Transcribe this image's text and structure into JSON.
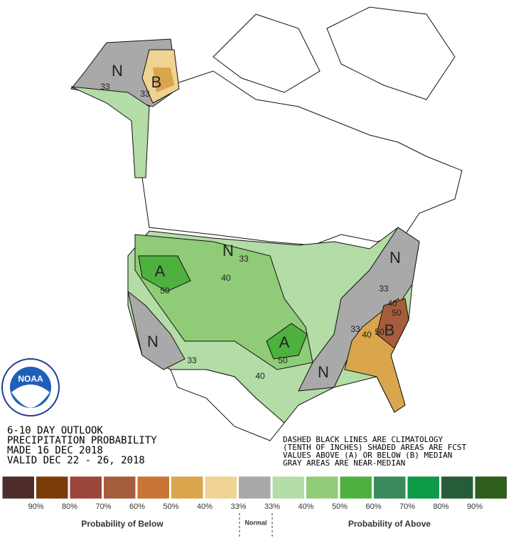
{
  "map_labels": [
    "N",
    "B",
    "33",
    "33",
    "A",
    "50",
    "N",
    "33",
    "40",
    "N",
    "33",
    "A",
    "50",
    "40",
    "N",
    "N",
    "33",
    "40",
    "50",
    "B",
    "50",
    "40",
    "33"
  ],
  "logo": "NOAA",
  "title_block": [
    "6-10 DAY OUTLOOK",
    "PRECIPITATION PROBABILITY",
    "MADE  16 DEC 2018",
    "VALID  DEC 22 - 26, 2018"
  ],
  "notes": [
    "DASHED BLACK LINES ARE CLIMATOLOGY",
    "(TENTH OF INCHES) SHADED AREAS ARE FCST",
    "VALUES ABOVE (A) OR BELOW (B) MEDIAN",
    "GRAY AREAS ARE NEAR-MEDIAN"
  ],
  "legend": {
    "items": [
      {
        "label": "90%",
        "color": "#4e2c2c"
      },
      {
        "label": "80%",
        "color": "#7b3c0c"
      },
      {
        "label": "70%",
        "color": "#9b463a"
      },
      {
        "label": "60%",
        "color": "#a65d3b"
      },
      {
        "label": "50%",
        "color": "#c87535"
      },
      {
        "label": "40%",
        "color": "#d9a64e"
      },
      {
        "label": "33%",
        "color": "#f0d292"
      },
      {
        "label": "33%",
        "color": "#a9a9a9"
      },
      {
        "label": "40%",
        "color": "#b4dca6"
      },
      {
        "label": "50%",
        "color": "#90cb78"
      },
      {
        "label": "60%",
        "color": "#4eb13f"
      },
      {
        "label": "70%",
        "color": "#3a8a5b"
      },
      {
        "label": "80%",
        "color": "#0c9a46"
      },
      {
        "label": "90%",
        "color": "#275c3b"
      },
      {
        "label": "",
        "color": "#2f5d1b"
      }
    ],
    "below": "Probability of Below",
    "normal": "Normal",
    "above": "Probability of Above"
  }
}
